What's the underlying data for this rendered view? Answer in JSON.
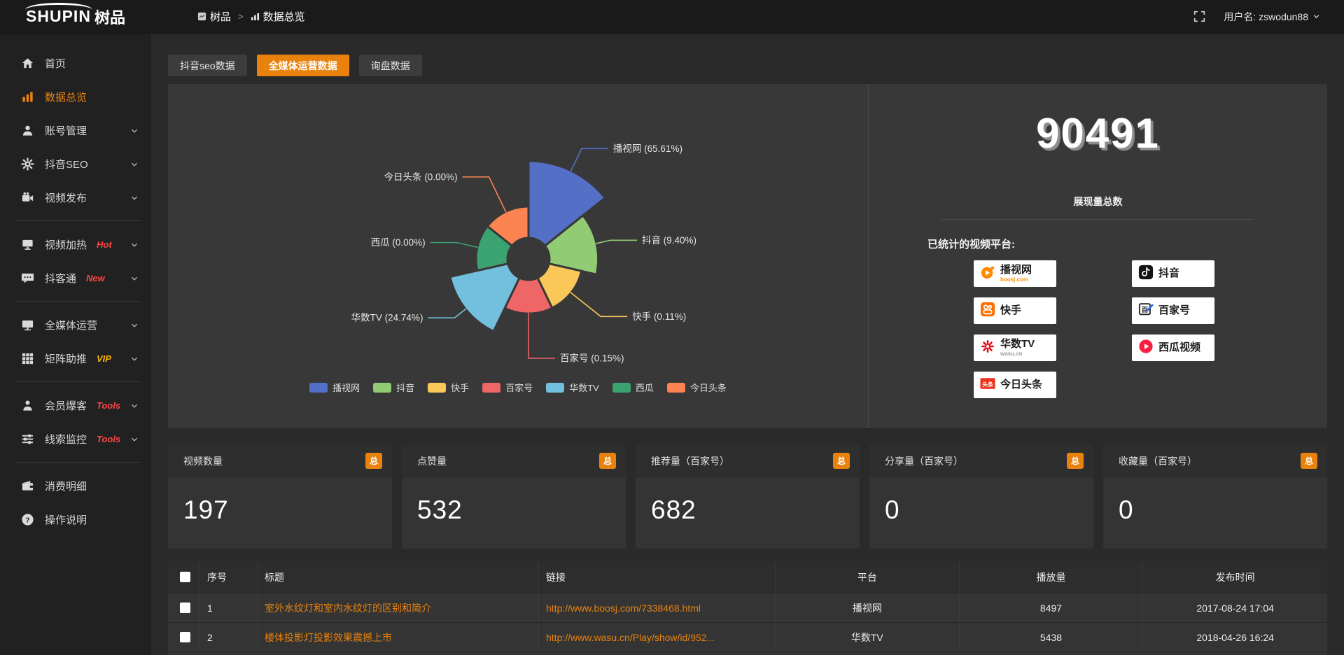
{
  "accent_color": "#e8820d",
  "header": {
    "logo_main": "SHUPIN",
    "logo_cn": "树品",
    "breadcrumb": {
      "root": "树品",
      "sep": ">",
      "current": "数据总览"
    },
    "username": "用户名: zswodun88"
  },
  "sidebar": {
    "items": [
      {
        "label": "首页",
        "icon": "home-icon",
        "chevron": false
      },
      {
        "label": "数据总览",
        "icon": "bar-chart-icon",
        "active": true,
        "chevron": false
      },
      {
        "label": "账号管理",
        "icon": "user-icon",
        "chevron": true
      },
      {
        "label": "抖音SEO",
        "icon": "gear-icon",
        "chevron": true
      },
      {
        "label": "视频发布",
        "icon": "publish-icon",
        "chevron": true,
        "divider_after": true
      },
      {
        "label": "视频加热",
        "icon": "screen-icon",
        "badge": "Hot",
        "badge_color": "#ff4545",
        "chevron": true
      },
      {
        "label": "抖客通",
        "icon": "chat-icon",
        "badge": "New",
        "badge_color": "#ff4545",
        "chevron": true,
        "divider_after": true
      },
      {
        "label": "全媒体运营",
        "icon": "monitor-icon",
        "chevron": true
      },
      {
        "label": "矩阵助推",
        "icon": "grid-icon",
        "badge": "VIP",
        "badge_color": "#f7b500",
        "chevron": true,
        "divider_after": true
      },
      {
        "label": "会员爆客",
        "icon": "person-icon",
        "badge": "Tools",
        "badge_color": "#ff4545",
        "chevron": true
      },
      {
        "label": "线索监控",
        "icon": "sliders-icon",
        "badge": "Tools",
        "badge_color": "#ff4545",
        "chevron": true,
        "divider_after": true
      },
      {
        "label": "消费明细",
        "icon": "wallet-icon",
        "chevron": false
      },
      {
        "label": "操作说明",
        "icon": "question-icon",
        "chevron": false
      }
    ]
  },
  "tabs": [
    {
      "label": "抖音seo数据",
      "active": false
    },
    {
      "label": "全媒体运营数据",
      "active": true
    },
    {
      "label": "询盘数据",
      "active": false
    }
  ],
  "chart_data": {
    "type": "pie",
    "variant": "nightingale-rose",
    "categories": [
      "播视网",
      "抖音",
      "快手",
      "百家号",
      "华数TV",
      "西瓜",
      "今日头条"
    ],
    "values_percent": [
      65.61,
      9.4,
      0.11,
      0.15,
      24.74,
      0.0,
      0.0
    ],
    "labels": [
      "播视网 (65.61%)",
      "抖音 (9.40%)",
      "快手 (0.11%)",
      "百家号 (0.15%)",
      "华数TV (24.74%)",
      "西瓜 (0.00%)",
      "今日头条 (0.00%)"
    ],
    "colors": [
      "#5470c6",
      "#91cc75",
      "#fac858",
      "#ee6666",
      "#73c0de",
      "#3ba272",
      "#fc8452"
    ],
    "legend_position": "bottom",
    "start_angle_deg": 90,
    "clockwise": true
  },
  "summary": {
    "total_value": "90491",
    "total_caption": "展现量总数",
    "platforms_title": "已统计的视频平台:",
    "columns": [
      [
        {
          "name": "播视网",
          "sub": "boosj.com",
          "icon": "boosj-icon"
        },
        {
          "name": "快手",
          "icon": "kuaishou-icon"
        },
        {
          "name": "华数TV",
          "sub": "wasu.cn",
          "icon": "wasu-icon"
        },
        {
          "name": "今日头条",
          "icon": "toutiao-icon"
        }
      ],
      [
        {
          "name": "抖音",
          "icon": "douyin-icon"
        },
        {
          "name": "百家号",
          "icon": "baijiahao-icon"
        },
        {
          "name": "西瓜视频",
          "icon": "xigua-icon"
        }
      ]
    ]
  },
  "stat_cards": [
    {
      "title": "视频数量",
      "badge": "总",
      "value": "197"
    },
    {
      "title": "点赞量",
      "badge": "总",
      "value": "532"
    },
    {
      "title": "推荐量（百家号）",
      "badge": "总",
      "value": "682"
    },
    {
      "title": "分享量（百家号）",
      "badge": "总",
      "value": "0"
    },
    {
      "title": "收藏量（百家号）",
      "badge": "总",
      "value": "0"
    }
  ],
  "table": {
    "headers": [
      "序号",
      "标题",
      "链接",
      "平台",
      "播放量",
      "发布时间"
    ],
    "rows": [
      {
        "no": "1",
        "title": "室外水纹灯和室内水纹灯的区别和简介",
        "link": "http://www.boosj.com/7338468.html",
        "platform": "播视网",
        "plays": "8497",
        "time": "2017-08-24 17:04"
      },
      {
        "no": "2",
        "title": "楼体投影灯投影效果震撼上市",
        "link": "http://www.wasu.cn/Play/show/id/952...",
        "platform": "华数TV",
        "plays": "5438",
        "time": "2018-04-26 16:24"
      }
    ]
  }
}
